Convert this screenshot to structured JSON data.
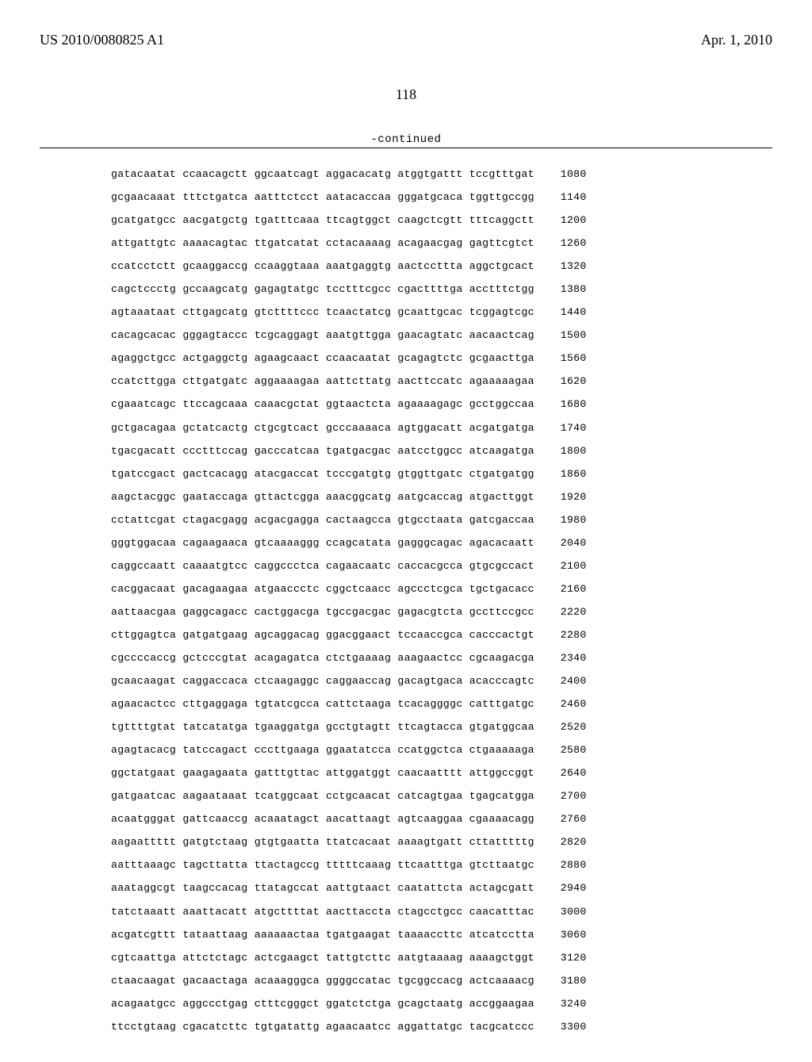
{
  "header": {
    "left": "US 2010/0080825 A1",
    "right": "Apr. 1, 2010"
  },
  "page_number": "118",
  "continued_label": "-continued",
  "sequence": {
    "rows": [
      {
        "seq": "gatacaatat ccaacagctt ggcaatcagt aggacacatg atggtgattt tccgtttgat",
        "pos": "1080"
      },
      {
        "seq": "gcgaacaaat tttctgatca aatttctcct aatacaccaa gggatgcaca tggttgccgg",
        "pos": "1140"
      },
      {
        "seq": "gcatgatgcc aacgatgctg tgatttcaaa ttcagtggct caagctcgtt tttcaggctt",
        "pos": "1200"
      },
      {
        "seq": "attgattgtc aaaacagtac ttgatcatat cctacaaaag acagaacgag gagttcgtct",
        "pos": "1260"
      },
      {
        "seq": "ccatcctctt gcaaggaccg ccaaggtaaa aaatgaggtg aactccttta aggctgcact",
        "pos": "1320"
      },
      {
        "seq": "cagctccctg gccaagcatg gagagtatgc tcctttcgcc cgacttttga acctttctgg",
        "pos": "1380"
      },
      {
        "seq": "agtaaataat cttgagcatg gtcttttccc tcaactatcg gcaattgcac tcggagtcgc",
        "pos": "1440"
      },
      {
        "seq": "cacagcacac gggagtaccc tcgcaggagt aaatgttgga gaacagtatc aacaactcag",
        "pos": "1500"
      },
      {
        "seq": "agaggctgcc actgaggctg agaagcaact ccaacaatat gcagagtctc gcgaacttga",
        "pos": "1560"
      },
      {
        "seq": "ccatcttgga cttgatgatc aggaaaagaa aattcttatg aacttccatc agaaaaagaa",
        "pos": "1620"
      },
      {
        "seq": "cgaaatcagc ttccagcaaa caaacgctat ggtaactcta agaaaagagc gcctggccaa",
        "pos": "1680"
      },
      {
        "seq": "gctgacagaa gctatcactg ctgcgtcact gcccaaaaca agtggacatt acgatgatga",
        "pos": "1740"
      },
      {
        "seq": "tgacgacatt ccctttccag gacccatcaa tgatgacgac aatcctggcc atcaagatga",
        "pos": "1800"
      },
      {
        "seq": "tgatccgact gactcacagg atacgaccat tcccgatgtg gtggttgatc ctgatgatgg",
        "pos": "1860"
      },
      {
        "seq": "aagctacggc gaataccaga gttactcgga aaacggcatg aatgcaccag atgacttggt",
        "pos": "1920"
      },
      {
        "seq": "cctattcgat ctagacgagg acgacgagga cactaagcca gtgcctaata gatcgaccaa",
        "pos": "1980"
      },
      {
        "seq": "gggtggacaa cagaagaaca gtcaaaaggg ccagcatata gagggcagac agacacaatt",
        "pos": "2040"
      },
      {
        "seq": "caggccaatt caaaatgtcc caggccctca cagaacaatc caccacgcca gtgcgccact",
        "pos": "2100"
      },
      {
        "seq": "cacggacaat gacagaagaa atgaaccctc cggctcaacc agccctcgca tgctgacacc",
        "pos": "2160"
      },
      {
        "seq": "aattaacgaa gaggcagacc cactggacga tgccgacgac gagacgtcta gccttccgcc",
        "pos": "2220"
      },
      {
        "seq": "cttggagtca gatgatgaag agcaggacag ggacggaact tccaaccgca cacccactgt",
        "pos": "2280"
      },
      {
        "seq": "cgccccaccg gctcccgtat acagagatca ctctgaaaag aaagaactcc cgcaagacga",
        "pos": "2340"
      },
      {
        "seq": "gcaacaagat caggaccaca ctcaagaggc caggaaccag gacagtgaca acacccagtc",
        "pos": "2400"
      },
      {
        "seq": "agaacactcc cttgaggaga tgtatcgcca cattctaaga tcacaggggc catttgatgc",
        "pos": "2460"
      },
      {
        "seq": "tgttttgtat tatcatatga tgaaggatga gcctgtagtt ttcagtacca gtgatggcaa",
        "pos": "2520"
      },
      {
        "seq": "agagtacacg tatccagact cccttgaaga ggaatatcca ccatggctca ctgaaaaaga",
        "pos": "2580"
      },
      {
        "seq": "ggctatgaat gaagagaata gatttgttac attggatggt caacaatttt attggccggt",
        "pos": "2640"
      },
      {
        "seq": "gatgaatcac aagaataaat tcatggcaat cctgcaacat catcagtgaa tgagcatgga",
        "pos": "2700"
      },
      {
        "seq": "acaatgggat gattcaaccg acaaatagct aacattaagt agtcaaggaa cgaaaacagg",
        "pos": "2760"
      },
      {
        "seq": "aagaattttt gatgtctaag gtgtgaatta ttatcacaat aaaagtgatt cttatttttg",
        "pos": "2820"
      },
      {
        "seq": "aatttaaagc tagcttatta ttactagccg tttttcaaag ttcaatttga gtcttaatgc",
        "pos": "2880"
      },
      {
        "seq": "aaataggcgt taagccacag ttatagccat aattgtaact caatattcta actagcgatt",
        "pos": "2940"
      },
      {
        "seq": "tatctaaatt aaattacatt atgcttttat aacttaccta ctagcctgcc caacatttac",
        "pos": "3000"
      },
      {
        "seq": "acgatcgttt tataattaag aaaaaactaa tgatgaagat taaaaccttc atcatcctta",
        "pos": "3060"
      },
      {
        "seq": "cgtcaattga attctctagc actcgaagct tattgtcttc aatgtaaaag aaaagctggt",
        "pos": "3120"
      },
      {
        "seq": "ctaacaagat gacaactaga acaaagggca ggggccatac tgcggccacg actcaaaacg",
        "pos": "3180"
      },
      {
        "seq": "acagaatgcc aggccctgag ctttcgggct ggatctctga gcagctaatg accggaagaa",
        "pos": "3240"
      },
      {
        "seq": "ttcctgtaag cgacatcttc tgtgatattg agaacaatcc aggattatgc tacgcatccc",
        "pos": "3300"
      }
    ]
  }
}
